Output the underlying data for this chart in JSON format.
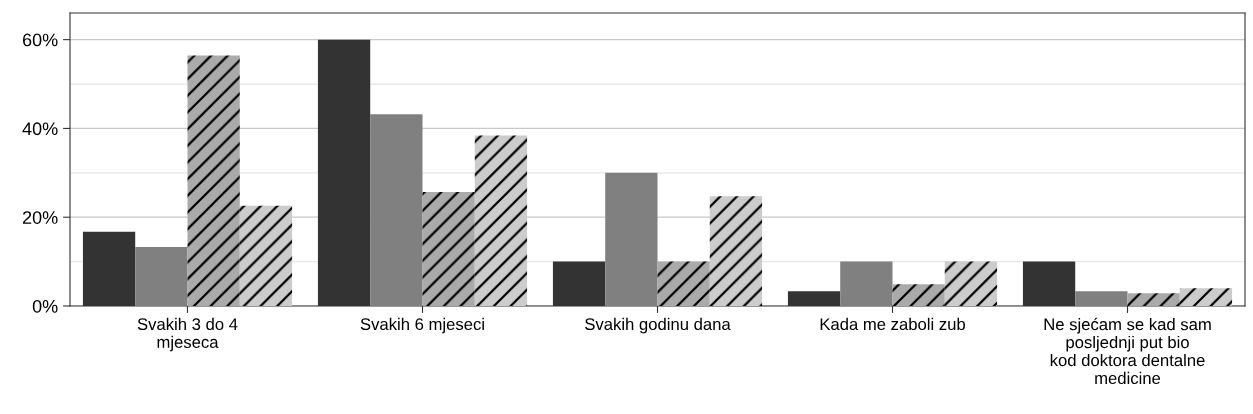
{
  "chart_data": {
    "type": "bar",
    "categories": [
      "Svakih 3 do 4\nmjeseca",
      "Svakih 6 mjeseci",
      "Svakih godinu dana",
      "Kada me zaboli zub",
      "Ne sjećam se kad sam\nposljednji put bio\nkod doktora dentalne\nmedicine"
    ],
    "series": [
      {
        "color": "#333333",
        "values": [
          16.7,
          60,
          10,
          3.3,
          10
        ]
      },
      {
        "color": "#808080",
        "values": [
          13.3,
          43.2,
          30,
          10,
          3.3
        ]
      },
      {
        "color": "#aaaaaa",
        "values": [
          56.4,
          25.7,
          10,
          4.9,
          2.9
        ]
      },
      {
        "color": "#cccccc",
        "values": [
          22.6,
          38.4,
          24.7,
          10,
          4
        ]
      }
    ],
    "ylim": [
      0,
      66
    ],
    "yticks": [
      {
        "value": 0,
        "label": "0%"
      },
      {
        "value": 20,
        "label": "20%"
      },
      {
        "value": 40,
        "label": "40%"
      },
      {
        "value": 60,
        "label": "60%"
      }
    ],
    "grid": "y",
    "legend": false
  }
}
